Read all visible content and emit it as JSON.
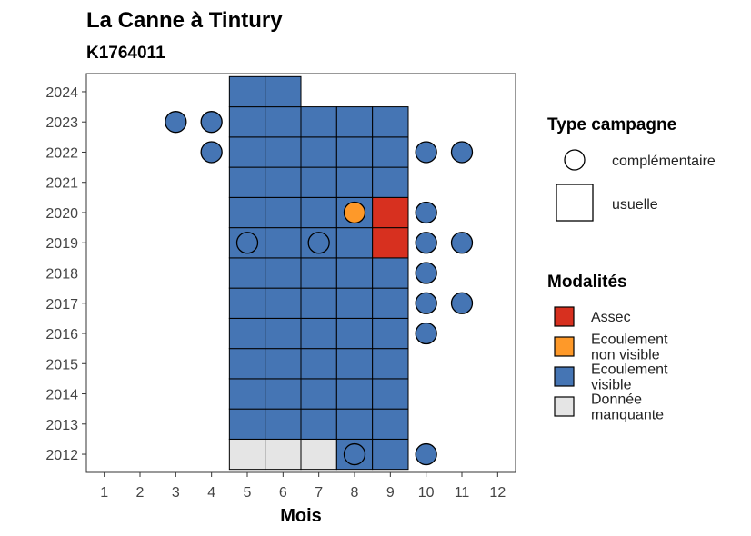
{
  "chart_data": {
    "type": "heatmap",
    "title": "La Canne à Tintury",
    "subtitle": "K1764011",
    "xlabel": "Mois",
    "ylabel": "",
    "x_ticks": [
      1,
      2,
      3,
      4,
      5,
      6,
      7,
      8,
      9,
      10,
      11,
      12
    ],
    "y_ticks": [
      2012,
      2013,
      2014,
      2015,
      2016,
      2017,
      2018,
      2019,
      2020,
      2021,
      2022,
      2023,
      2024
    ],
    "xlim": [
      0.5,
      12.5
    ],
    "ylim": [
      2011.4,
      2024.6
    ],
    "grid": false,
    "legend_placement": "right",
    "colors": {
      "Assec": "#d7301f",
      "Ecoulement non visible": "#fe9929",
      "Ecoulement visible": "#4575b4",
      "Donnée manquante": "#e5e5e5"
    },
    "legend_shape": {
      "title": "Type campagne",
      "items": [
        {
          "label": "complémentaire",
          "shape": "circle"
        },
        {
          "label": "usuelle",
          "shape": "square"
        }
      ]
    },
    "legend_fill": {
      "title": "Modalités",
      "items": [
        {
          "key": "Assec",
          "lines": [
            "Assec"
          ]
        },
        {
          "key": "Ecoulement non visible",
          "lines": [
            "Ecoulement",
            "non visible"
          ]
        },
        {
          "key": "Ecoulement visible",
          "lines": [
            "Ecoulement",
            "visible"
          ]
        },
        {
          "key": "Donnée manquante",
          "lines": [
            "Donnée",
            "manquante"
          ]
        }
      ]
    },
    "usuelle": [
      {
        "year": 2012,
        "cells": [
          [
            5,
            "Donnée manquante"
          ],
          [
            6,
            "Donnée manquante"
          ],
          [
            7,
            "Donnée manquante"
          ],
          [
            8,
            "Ecoulement visible"
          ],
          [
            9,
            "Ecoulement visible"
          ]
        ]
      },
      {
        "year": 2013,
        "cells": [
          [
            5,
            "Ecoulement visible"
          ],
          [
            6,
            "Ecoulement visible"
          ],
          [
            7,
            "Ecoulement visible"
          ],
          [
            8,
            "Ecoulement visible"
          ],
          [
            9,
            "Ecoulement visible"
          ]
        ]
      },
      {
        "year": 2014,
        "cells": [
          [
            5,
            "Ecoulement visible"
          ],
          [
            6,
            "Ecoulement visible"
          ],
          [
            7,
            "Ecoulement visible"
          ],
          [
            8,
            "Ecoulement visible"
          ],
          [
            9,
            "Ecoulement visible"
          ]
        ]
      },
      {
        "year": 2015,
        "cells": [
          [
            5,
            "Ecoulement visible"
          ],
          [
            6,
            "Ecoulement visible"
          ],
          [
            7,
            "Ecoulement visible"
          ],
          [
            8,
            "Ecoulement visible"
          ],
          [
            9,
            "Ecoulement visible"
          ]
        ]
      },
      {
        "year": 2016,
        "cells": [
          [
            5,
            "Ecoulement visible"
          ],
          [
            6,
            "Ecoulement visible"
          ],
          [
            7,
            "Ecoulement visible"
          ],
          [
            8,
            "Ecoulement visible"
          ],
          [
            9,
            "Ecoulement visible"
          ]
        ]
      },
      {
        "year": 2017,
        "cells": [
          [
            5,
            "Ecoulement visible"
          ],
          [
            6,
            "Ecoulement visible"
          ],
          [
            7,
            "Ecoulement visible"
          ],
          [
            8,
            "Ecoulement visible"
          ],
          [
            9,
            "Ecoulement visible"
          ]
        ]
      },
      {
        "year": 2018,
        "cells": [
          [
            5,
            "Ecoulement visible"
          ],
          [
            6,
            "Ecoulement visible"
          ],
          [
            7,
            "Ecoulement visible"
          ],
          [
            8,
            "Ecoulement visible"
          ],
          [
            9,
            "Ecoulement visible"
          ]
        ]
      },
      {
        "year": 2019,
        "cells": [
          [
            5,
            "Ecoulement visible"
          ],
          [
            6,
            "Ecoulement visible"
          ],
          [
            7,
            "Ecoulement visible"
          ],
          [
            8,
            "Ecoulement visible"
          ],
          [
            9,
            "Assec"
          ]
        ]
      },
      {
        "year": 2020,
        "cells": [
          [
            5,
            "Ecoulement visible"
          ],
          [
            6,
            "Ecoulement visible"
          ],
          [
            7,
            "Ecoulement visible"
          ],
          [
            8,
            "Ecoulement visible"
          ],
          [
            9,
            "Assec"
          ]
        ]
      },
      {
        "year": 2021,
        "cells": [
          [
            5,
            "Ecoulement visible"
          ],
          [
            6,
            "Ecoulement visible"
          ],
          [
            7,
            "Ecoulement visible"
          ],
          [
            8,
            "Ecoulement visible"
          ],
          [
            9,
            "Ecoulement visible"
          ]
        ]
      },
      {
        "year": 2022,
        "cells": [
          [
            5,
            "Ecoulement visible"
          ],
          [
            6,
            "Ecoulement visible"
          ],
          [
            7,
            "Ecoulement visible"
          ],
          [
            8,
            "Ecoulement visible"
          ],
          [
            9,
            "Ecoulement visible"
          ]
        ]
      },
      {
        "year": 2023,
        "cells": [
          [
            5,
            "Ecoulement visible"
          ],
          [
            6,
            "Ecoulement visible"
          ],
          [
            7,
            "Ecoulement visible"
          ],
          [
            8,
            "Ecoulement visible"
          ],
          [
            9,
            "Ecoulement visible"
          ]
        ]
      },
      {
        "year": 2024,
        "cells": [
          [
            5,
            "Ecoulement visible"
          ],
          [
            6,
            "Ecoulement visible"
          ]
        ]
      }
    ],
    "complementaire": [
      {
        "year": 2012,
        "month": 8,
        "modalite": "Ecoulement visible"
      },
      {
        "year": 2012,
        "month": 10,
        "modalite": "Ecoulement visible"
      },
      {
        "year": 2016,
        "month": 10,
        "modalite": "Ecoulement visible"
      },
      {
        "year": 2017,
        "month": 10,
        "modalite": "Ecoulement visible"
      },
      {
        "year": 2017,
        "month": 11,
        "modalite": "Ecoulement visible"
      },
      {
        "year": 2018,
        "month": 10,
        "modalite": "Ecoulement visible"
      },
      {
        "year": 2019,
        "month": 5,
        "modalite": "Ecoulement visible"
      },
      {
        "year": 2019,
        "month": 7,
        "modalite": "Ecoulement visible"
      },
      {
        "year": 2019,
        "month": 10,
        "modalite": "Ecoulement visible"
      },
      {
        "year": 2019,
        "month": 11,
        "modalite": "Ecoulement visible"
      },
      {
        "year": 2020,
        "month": 8,
        "modalite": "Ecoulement non visible"
      },
      {
        "year": 2020,
        "month": 10,
        "modalite": "Ecoulement visible"
      },
      {
        "year": 2022,
        "month": 4,
        "modalite": "Ecoulement visible"
      },
      {
        "year": 2022,
        "month": 10,
        "modalite": "Ecoulement visible"
      },
      {
        "year": 2022,
        "month": 11,
        "modalite": "Ecoulement visible"
      },
      {
        "year": 2023,
        "month": 3,
        "modalite": "Ecoulement visible"
      },
      {
        "year": 2023,
        "month": 4,
        "modalite": "Ecoulement visible"
      }
    ]
  }
}
